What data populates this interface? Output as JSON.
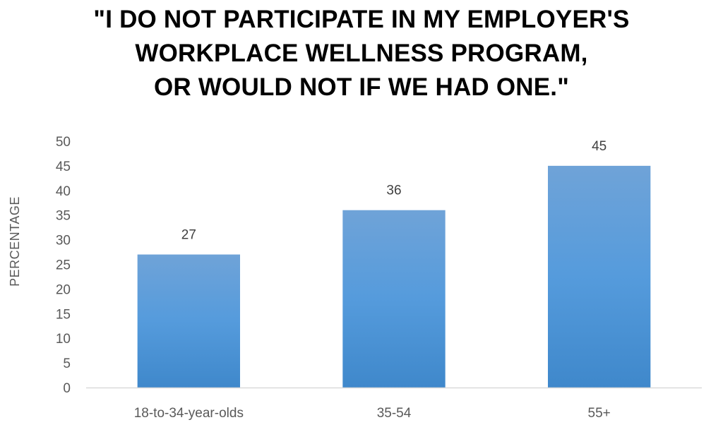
{
  "chart_data": {
    "type": "bar",
    "title_lines": [
      "\"I DO NOT PARTICIPATE IN MY EMPLOYER'S",
      "WORKPLACE WELLNESS PROGRAM,",
      "OR WOULD NOT IF WE HAD ONE.\""
    ],
    "categories": [
      "18-to-34-year-olds",
      "35-54",
      "55+"
    ],
    "values": [
      27,
      36,
      45
    ],
    "ylabel": "PERCENTAGE",
    "xlabel": "",
    "ylim": [
      0,
      50
    ],
    "yticks": [
      0,
      5,
      10,
      15,
      20,
      25,
      30,
      35,
      40,
      45,
      50
    ],
    "grid": false,
    "legend": "none",
    "colors": {
      "bar_top": "#6FA3D8",
      "bar_mid": "#559BDC",
      "bar_bottom": "#3F88CB",
      "axis": "#D9D9D9"
    }
  }
}
